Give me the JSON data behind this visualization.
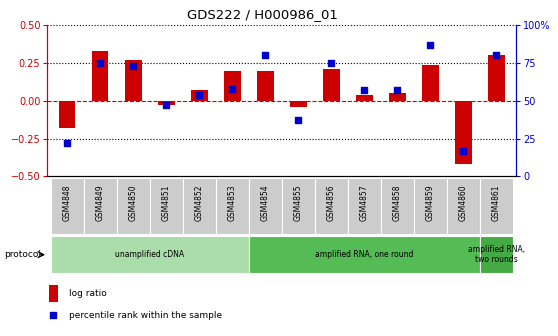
{
  "title": "GDS222 / H000986_01",
  "samples": [
    "GSM4848",
    "GSM4849",
    "GSM4850",
    "GSM4851",
    "GSM4852",
    "GSM4853",
    "GSM4854",
    "GSM4855",
    "GSM4856",
    "GSM4857",
    "GSM4858",
    "GSM4859",
    "GSM4860",
    "GSM4861"
  ],
  "log_ratio": [
    -0.18,
    0.33,
    0.27,
    -0.03,
    0.07,
    0.2,
    0.2,
    -0.04,
    0.21,
    0.04,
    0.05,
    0.24,
    -0.42,
    0.3
  ],
  "percentile": [
    22,
    75,
    73,
    47,
    54,
    58,
    80,
    37,
    75,
    57,
    57,
    87,
    17,
    80
  ],
  "bar_color": "#cc0000",
  "dot_color": "#0000cc",
  "ylim_left": [
    -0.5,
    0.5
  ],
  "ylim_right": [
    0,
    100
  ],
  "yticks_left": [
    -0.5,
    -0.25,
    0,
    0.25,
    0.5
  ],
  "yticks_right": [
    0,
    25,
    50,
    75,
    100
  ],
  "hlines_dotted": [
    -0.25,
    0.25
  ],
  "hline_red_dashed": 0,
  "protocol_groups": [
    {
      "label": "unamplified cDNA",
      "start": 0,
      "end": 6,
      "color": "#aaddaa"
    },
    {
      "label": "amplified RNA, one round",
      "start": 6,
      "end": 13,
      "color": "#55bb55"
    },
    {
      "label": "amplified RNA,\ntwo rounds",
      "start": 13,
      "end": 14,
      "color": "#44aa44"
    }
  ],
  "legend_entries": [
    "log ratio",
    "percentile rank within the sample"
  ],
  "background_color": "#ffffff",
  "tick_label_bg": "#cccccc",
  "bar_width": 0.5,
  "dot_size": 18
}
